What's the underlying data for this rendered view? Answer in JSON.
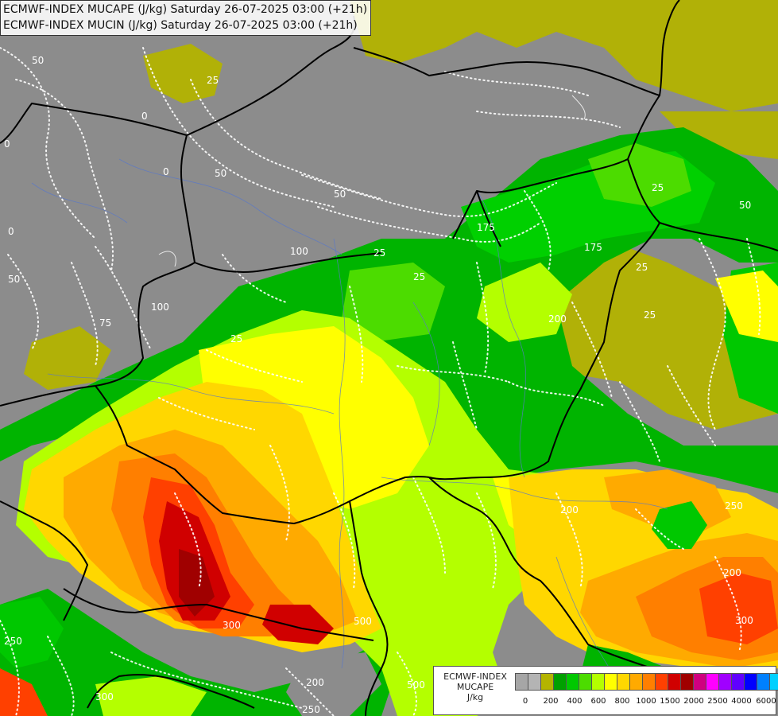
{
  "title": {
    "line1": "ECMWF-INDEX MUCAPE (J/kg) Saturday 26-07-2025 03:00 (+21h)",
    "line2": "ECMWF-INDEX MUCIN (J/kg) Saturday 26-07-2025 03:00 (+21h)"
  },
  "legend": {
    "caption_line1": "ECMWF-INDEX",
    "caption_line2": "MUCAPE",
    "caption_line3": "J/kg",
    "colors": [
      "#a6a6a6",
      "#b4b4b4",
      "#b4b400",
      "#00a000",
      "#00c800",
      "#4cdc00",
      "#b4ff00",
      "#ffff00",
      "#ffd700",
      "#ffaa00",
      "#ff7f00",
      "#ff4000",
      "#d00000",
      "#a00000",
      "#d0007f",
      "#ff00ff",
      "#a000ff",
      "#6000ff",
      "#0000ff",
      "#0080ff",
      "#00d0ff",
      "#80ffff",
      "#ffffff"
    ],
    "ticks": [
      "0",
      "200",
      "400",
      "600",
      "800",
      "1000",
      "1500",
      "2000",
      "2500",
      "4000",
      "6000"
    ]
  },
  "contour_labels": [
    "50",
    "25",
    "0",
    "0",
    "50",
    "0",
    "50",
    "0",
    "175",
    "100",
    "50",
    "25",
    "75",
    "100",
    "25",
    "25",
    "25",
    "175",
    "25",
    "200",
    "25",
    "50",
    "200",
    "300",
    "500",
    "200",
    "250",
    "200",
    "300",
    "250",
    "500",
    "250",
    "300"
  ]
}
